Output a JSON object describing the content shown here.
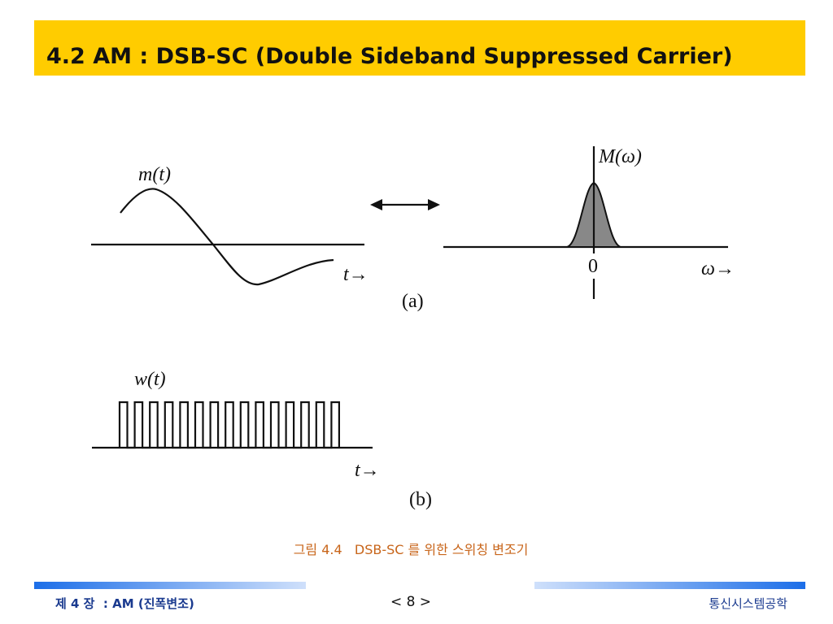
{
  "header": {
    "title": "4.2 AM : DSB-SC (Double Sideband Suppressed Carrier)"
  },
  "figure": {
    "panel_a": {
      "signal_label": "m(t)",
      "time_axis_label": "t→",
      "spectrum_label": "M(ω)",
      "origin_label": "0",
      "frequency_axis_label": "ω→",
      "panel_label": "(a)"
    },
    "panel_b": {
      "signal_label": "w(t)",
      "time_axis_label": "t→",
      "panel_label": "(b)"
    },
    "caption": "그림 4.4   DSB-SC 를 위한 스위칭 변조기"
  },
  "footer": {
    "chapter": "제 4 장  : AM (진폭변조)",
    "page": "< 8 >",
    "course": "통신시스템공학"
  }
}
